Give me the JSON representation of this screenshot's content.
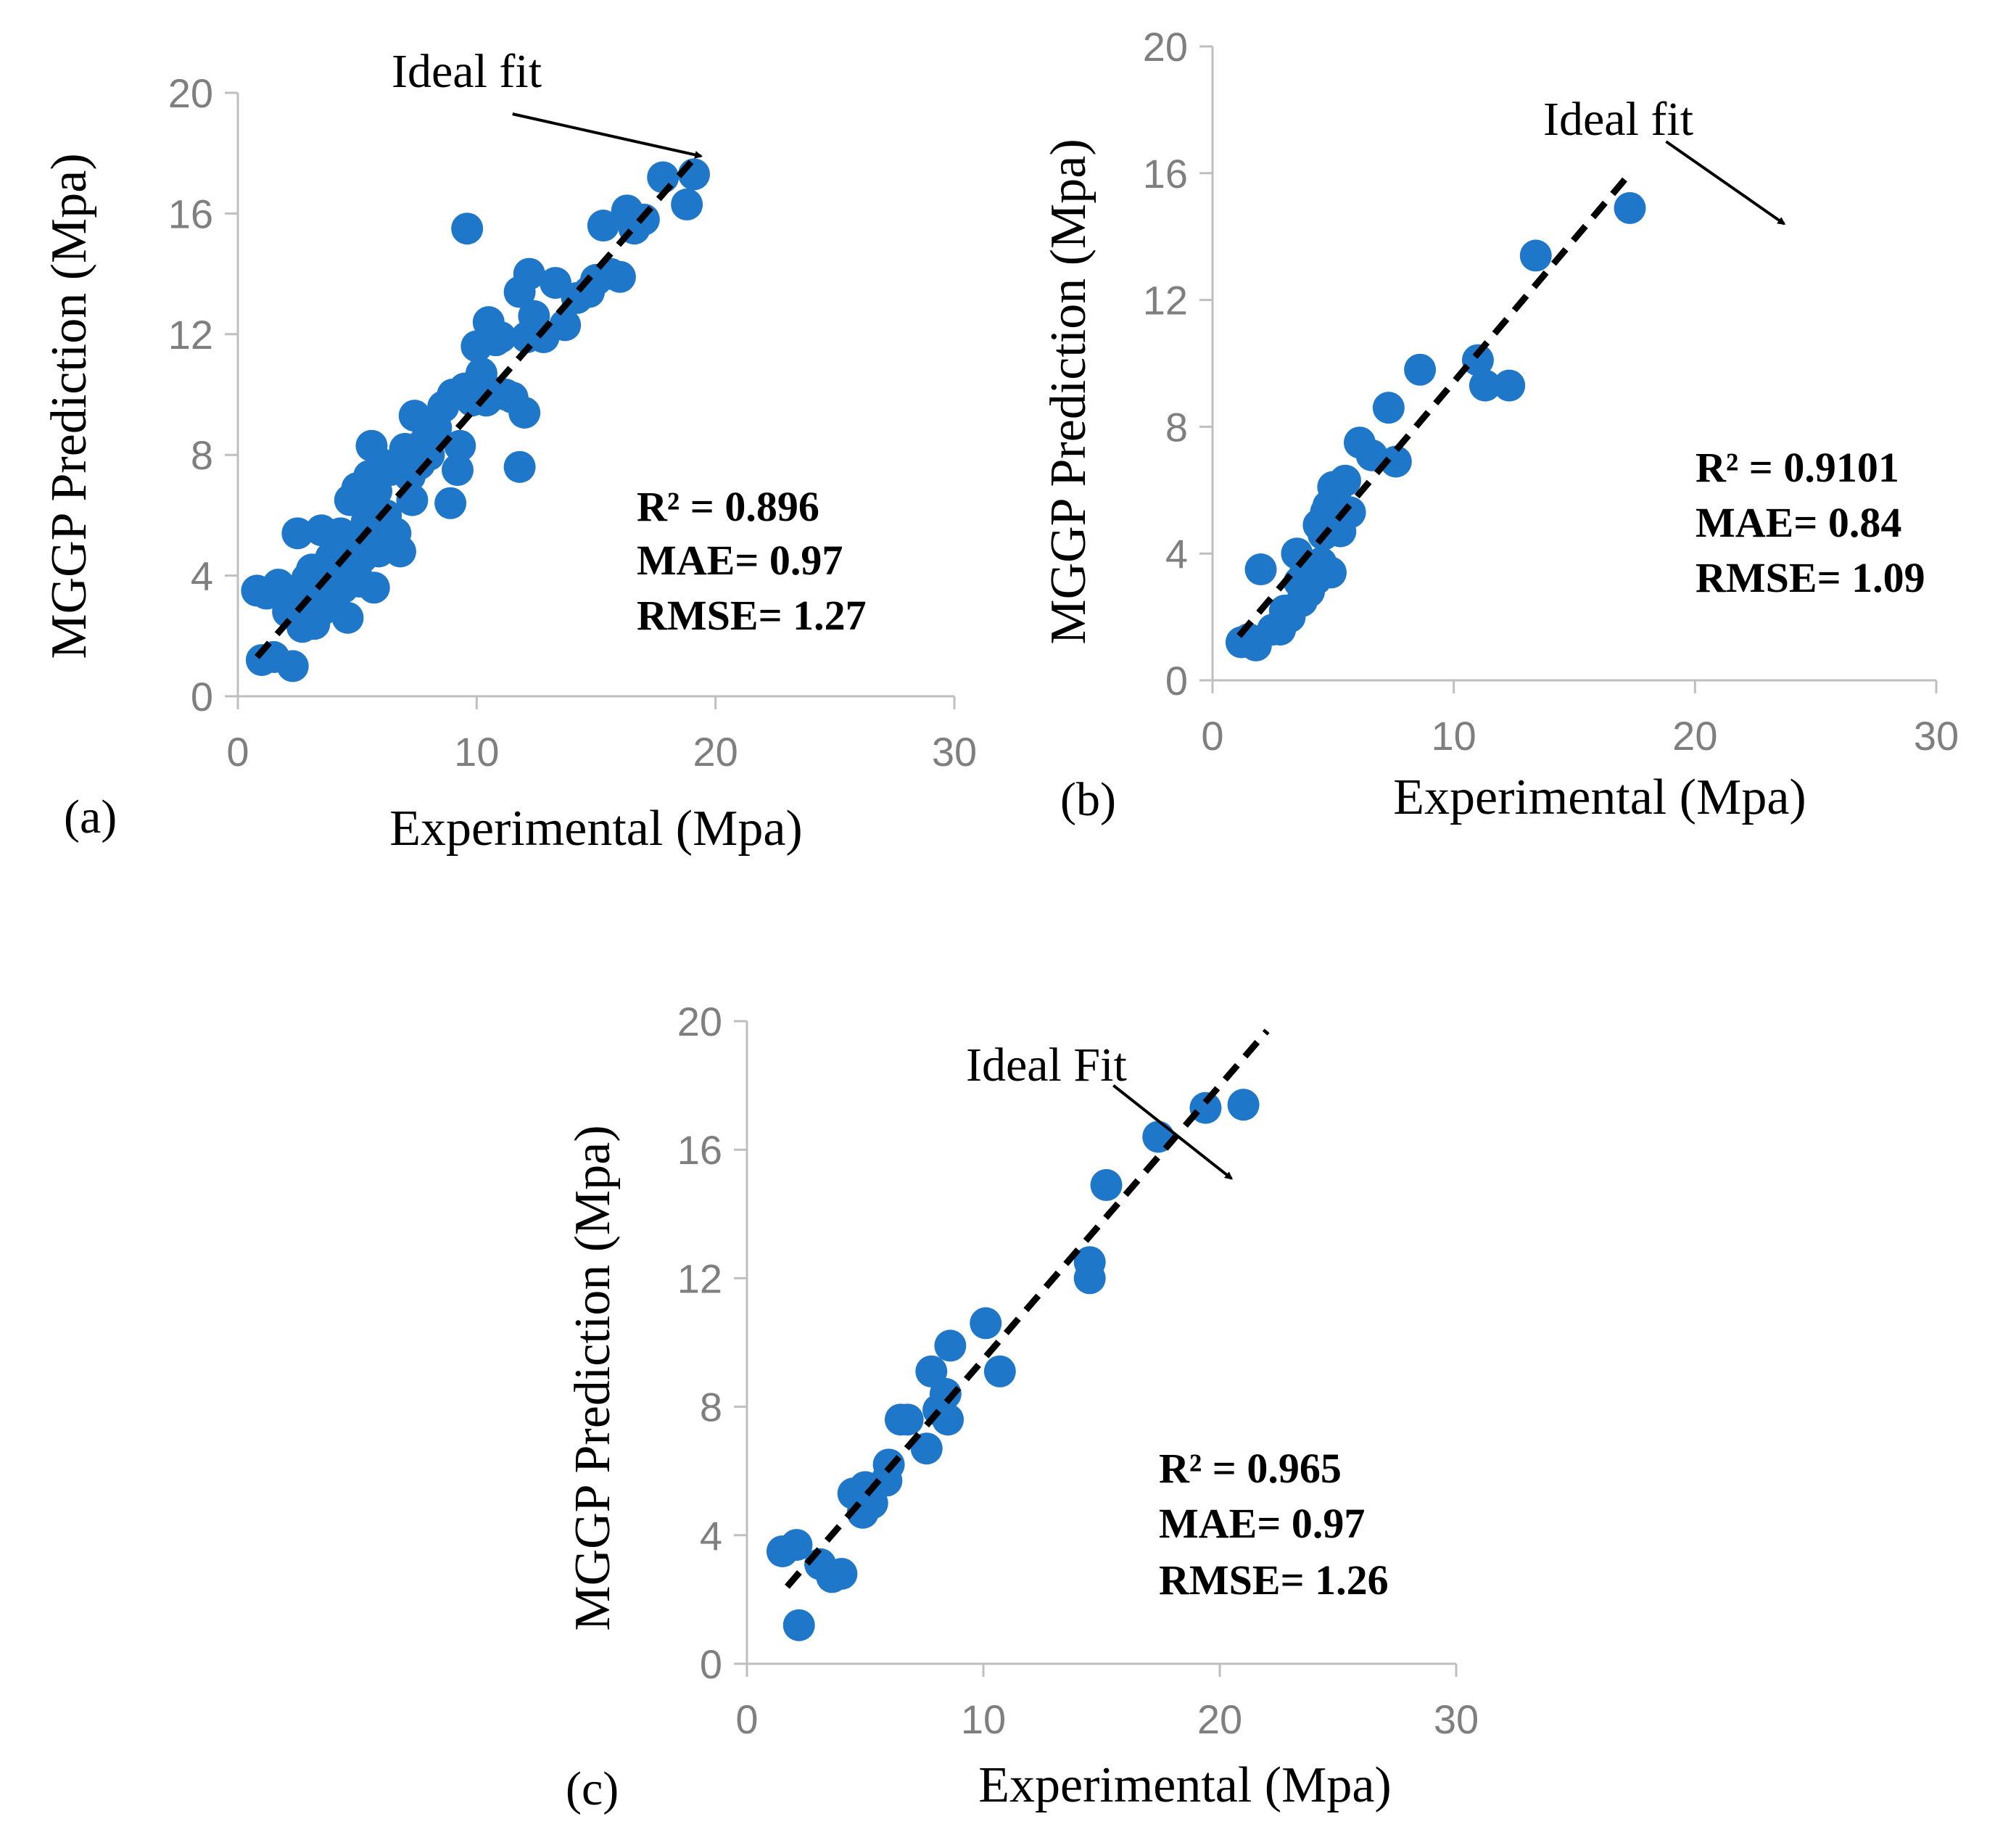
{
  "colors": {
    "point": "#1f77c9",
    "fit_line": "#000000",
    "axis": "#bfbfbf",
    "tick_text": "#7f7f7f"
  },
  "chart_data": [
    {
      "type": "scatter",
      "panel_label": "(a)",
      "xlabel": "Experimental (Mpa)",
      "ylabel": "MGGP Prediction (Mpa)",
      "xlim": [
        0,
        30
      ],
      "ylim": [
        0,
        20
      ],
      "x_ticks": [
        "0",
        "10",
        "20",
        "30"
      ],
      "y_ticks": [
        "0",
        "4",
        "8",
        "12",
        "16",
        "20"
      ],
      "ideal_fit_label": "Ideal fit",
      "ideal_fit_line": {
        "x": [
          0.8,
          19.3
        ],
        "y": [
          1.3,
          18.0
        ]
      },
      "ideal_fit_arrow": {
        "from": [
          11.5,
          19.3
        ],
        "to": [
          19.4,
          17.9
        ]
      },
      "stats": {
        "r2_label": "R",
        "r2_value": "² = 0.896",
        "mae": "MAE= 0.97",
        "rmse": "RMSE= 1.27"
      },
      "points": {
        "x": [
          0.8,
          1.0,
          1.2,
          1.5,
          1.7,
          2.1,
          2.3,
          2.5,
          2.5,
          2.7,
          2.9,
          3.0,
          3.1,
          3.2,
          3.4,
          3.5,
          3.6,
          3.7,
          3.9,
          4.0,
          4.1,
          4.2,
          4.3,
          4.4,
          4.5,
          4.6,
          4.7,
          4.8,
          4.9,
          5.0,
          5.0,
          5.1,
          5.2,
          5.3,
          5.4,
          5.5,
          5.6,
          5.7,
          5.8,
          5.9,
          6.0,
          6.1,
          6.2,
          6.4,
          6.6,
          6.8,
          7.0,
          7.2,
          7.3,
          7.4,
          7.6,
          7.8,
          8.0,
          8.3,
          8.6,
          8.9,
          9.0,
          9.2,
          9.3,
          9.5,
          9.6,
          9.8,
          10.0,
          10.2,
          10.4,
          10.5,
          10.6,
          10.8,
          11.0,
          11.2,
          11.5,
          11.8,
          11.8,
          12.0,
          12.1,
          12.2,
          12.4,
          12.8,
          13.3,
          13.7,
          14.2,
          14.7,
          15.0,
          15.3,
          15.6,
          16.0,
          16.3,
          16.6,
          17.0,
          17.8,
          18.8,
          19.1
        ],
        "y": [
          3.5,
          1.2,
          3.4,
          1.3,
          3.7,
          2.8,
          1.0,
          5.4,
          3.3,
          2.3,
          3.9,
          2.5,
          4.2,
          2.4,
          3.4,
          5.5,
          2.9,
          3.6,
          4.6,
          3.1,
          4.4,
          3.8,
          5.4,
          3.6,
          4.7,
          2.6,
          6.5,
          3.9,
          4.1,
          6.9,
          5.0,
          3.8,
          4.6,
          6.4,
          5.8,
          7.3,
          8.3,
          3.6,
          6.8,
          4.8,
          7.7,
          5.2,
          6.0,
          7.5,
          5.4,
          4.8,
          8.2,
          7.3,
          6.5,
          9.3,
          7.7,
          8.4,
          8.0,
          8.9,
          9.6,
          6.4,
          10.0,
          7.5,
          8.3,
          10.2,
          15.5,
          9.8,
          11.6,
          10.7,
          9.8,
          12.4,
          10.1,
          11.8,
          11.9,
          10.0,
          9.9,
          7.6,
          13.4,
          9.4,
          11.9,
          14.0,
          12.6,
          11.9,
          13.7,
          12.3,
          13.2,
          13.4,
          13.8,
          15.6,
          14.0,
          13.9,
          16.1,
          15.5,
          15.8,
          17.2,
          16.3,
          17.3
        ]
      }
    },
    {
      "type": "scatter",
      "panel_label": "(b)",
      "xlabel": "Experimental (Mpa)",
      "ylabel": "MGGP Prediction (Mpa)",
      "xlim": [
        0,
        30
      ],
      "ylim": [
        0,
        20
      ],
      "x_ticks": [
        "0",
        "10",
        "20",
        "30"
      ],
      "y_ticks": [
        "0",
        "4",
        "8",
        "12",
        "16",
        "20"
      ],
      "ideal_fit_label": "Ideal fit",
      "ideal_fit_line": {
        "x": [
          1.1,
          17.2
        ],
        "y": [
          1.4,
          15.9
        ]
      },
      "ideal_fit_arrow": {
        "from": [
          18.8,
          17.0
        ],
        "to": [
          23.7,
          14.4
        ]
      },
      "stats": {
        "r2_label": "R",
        "r2_value": "² = 0.9101",
        "mae": "MAE= 0.84",
        "rmse": "RMSE= 1.09"
      },
      "points": {
        "x": [
          1.2,
          1.5,
          1.8,
          2.0,
          2.5,
          2.8,
          3.0,
          3.2,
          3.5,
          3.6,
          3.7,
          3.8,
          3.9,
          4.0,
          4.2,
          4.3,
          4.4,
          4.5,
          4.6,
          4.7,
          4.8,
          4.9,
          5.0,
          5.1,
          5.2,
          5.3,
          5.5,
          5.7,
          6.1,
          6.6,
          7.3,
          7.6,
          8.6,
          11.0,
          11.3,
          12.3,
          13.4,
          17.3
        ],
        "y": [
          1.2,
          1.3,
          1.1,
          3.5,
          1.6,
          1.6,
          2.2,
          2.0,
          4.0,
          3.1,
          2.5,
          3.3,
          3.4,
          2.8,
          3.6,
          3.2,
          4.9,
          3.7,
          4.6,
          5.3,
          5.5,
          3.4,
          6.1,
          5.7,
          5.2,
          4.7,
          6.3,
          5.3,
          7.5,
          7.1,
          8.6,
          6.9,
          9.8,
          10.1,
          9.3,
          9.3,
          13.4,
          14.9
        ]
      }
    },
    {
      "type": "scatter",
      "panel_label": "(c)",
      "xlabel": "Experimental (Mpa)",
      "ylabel": "MGGP Prediction (Mpa)",
      "xlim": [
        0,
        30
      ],
      "ylim": [
        0,
        20
      ],
      "x_ticks": [
        "0",
        "10",
        "20",
        "30"
      ],
      "y_ticks": [
        "0",
        "4",
        "8",
        "12",
        "16",
        "20"
      ],
      "ideal_fit_label": "Ideal Fit",
      "ideal_fit_line": {
        "x": [
          1.7,
          22.0
        ],
        "y": [
          2.4,
          19.7
        ]
      },
      "ideal_fit_arrow": {
        "from": [
          15.5,
          18.0
        ],
        "to": [
          20.5,
          15.1
        ]
      },
      "stats": {
        "r2_label": "R",
        "r2_value": "² = 0.965",
        "mae": "MAE= 0.97",
        "rmse": "RMSE= 1.26"
      },
      "points": {
        "x": [
          1.5,
          2.1,
          2.2,
          3.1,
          3.6,
          4.0,
          4.5,
          4.9,
          5.0,
          5.3,
          5.9,
          6.0,
          6.5,
          6.8,
          7.6,
          7.8,
          8.1,
          8.4,
          8.5,
          8.6,
          10.1,
          10.7,
          14.5,
          14.5,
          15.2,
          17.4,
          19.4,
          21.0
        ],
        "y": [
          3.5,
          3.7,
          1.2,
          3.1,
          2.7,
          2.8,
          5.3,
          4.7,
          5.5,
          5.0,
          5.7,
          6.2,
          7.6,
          7.6,
          6.7,
          9.1,
          7.9,
          8.4,
          7.6,
          9.9,
          10.6,
          9.1,
          12.5,
          12.0,
          14.9,
          16.4,
          17.3,
          17.4
        ]
      }
    }
  ]
}
